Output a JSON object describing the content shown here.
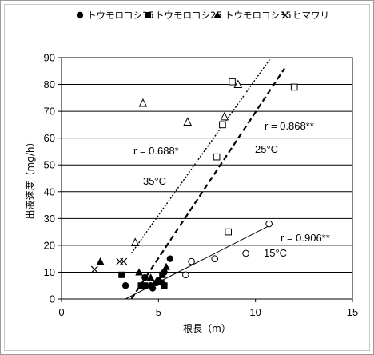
{
  "chart_data": {
    "type": "scatter",
    "xlabel": "根長（m）",
    "ylabel": "出液速度（mg/h）",
    "xlim": [
      0,
      15
    ],
    "ylim": [
      0,
      90
    ],
    "xticks": [
      "0",
      "5",
      "10",
      "15"
    ],
    "yticks": [
      "0",
      "10",
      "20",
      "30",
      "40",
      "50",
      "60",
      "70",
      "80",
      "90"
    ],
    "grid": "horizontal",
    "legend_position": "top",
    "series": [
      {
        "name": "トウモロコシ15",
        "marker": "filled-circle",
        "points": [
          [
            3.3,
            5
          ],
          [
            4.3,
            8
          ],
          [
            4.6,
            5
          ],
          [
            4.7,
            4
          ],
          [
            4.9,
            6
          ],
          [
            5.0,
            7
          ],
          [
            5.2,
            6
          ],
          [
            5.3,
            10
          ],
          [
            5.6,
            15
          ]
        ],
        "open_marker": "open-circle",
        "open_points": [
          [
            6.4,
            9
          ],
          [
            6.7,
            14
          ],
          [
            7.9,
            15
          ],
          [
            9.5,
            17
          ],
          [
            10.7,
            28
          ]
        ]
      },
      {
        "name": "トウモロコシ25",
        "marker": "filled-square",
        "points": [
          [
            3.1,
            9
          ],
          [
            4.1,
            5
          ],
          [
            4.3,
            5
          ],
          [
            5.2,
            9
          ],
          [
            5.3,
            5
          ]
        ],
        "open_marker": "open-square",
        "open_points": [
          [
            8.0,
            53
          ],
          [
            8.3,
            65
          ],
          [
            8.6,
            25
          ],
          [
            8.8,
            81
          ],
          [
            12.0,
            79
          ]
        ]
      },
      {
        "name": "トウモロコシ35",
        "marker": "filled-triangle",
        "points": [
          [
            2.0,
            14
          ],
          [
            4.0,
            10
          ],
          [
            4.6,
            8
          ],
          [
            5.4,
            12
          ]
        ],
        "open_marker": "open-triangle",
        "open_points": [
          [
            3.8,
            21
          ],
          [
            4.2,
            73
          ],
          [
            6.5,
            66
          ],
          [
            8.4,
            68
          ],
          [
            9.1,
            80
          ]
        ]
      },
      {
        "name": "ヒマワリ",
        "marker": "cross",
        "points": [
          [
            1.7,
            11
          ],
          [
            3.0,
            14
          ],
          [
            3.2,
            14
          ]
        ]
      }
    ],
    "regression_lines": [
      {
        "label": "15°C",
        "r": "r = 0.906**",
        "style": "solid",
        "from": [
          3.3,
          0
        ],
        "to": [
          10.9,
          28
        ]
      },
      {
        "label": "25°C",
        "r": "r = 0.868**",
        "style": "dashed",
        "from": [
          3.6,
          0
        ],
        "to": [
          11.5,
          86
        ]
      },
      {
        "label": "35°C",
        "r": "r = 0.688*",
        "style": "dotted",
        "from": [
          3.6,
          17
        ],
        "to": [
          10.8,
          90
        ]
      }
    ],
    "annotations": {
      "r15": "r = 0.906**",
      "t15": "15°C",
      "r25": "r = 0.868**",
      "t25": "25°C",
      "r35": "r = 0.688*",
      "t35": "35°C"
    },
    "legend": [
      "トウモロコシ15",
      "トウモロコシ25",
      "トウモロコシ35",
      "ヒマワリ"
    ]
  }
}
